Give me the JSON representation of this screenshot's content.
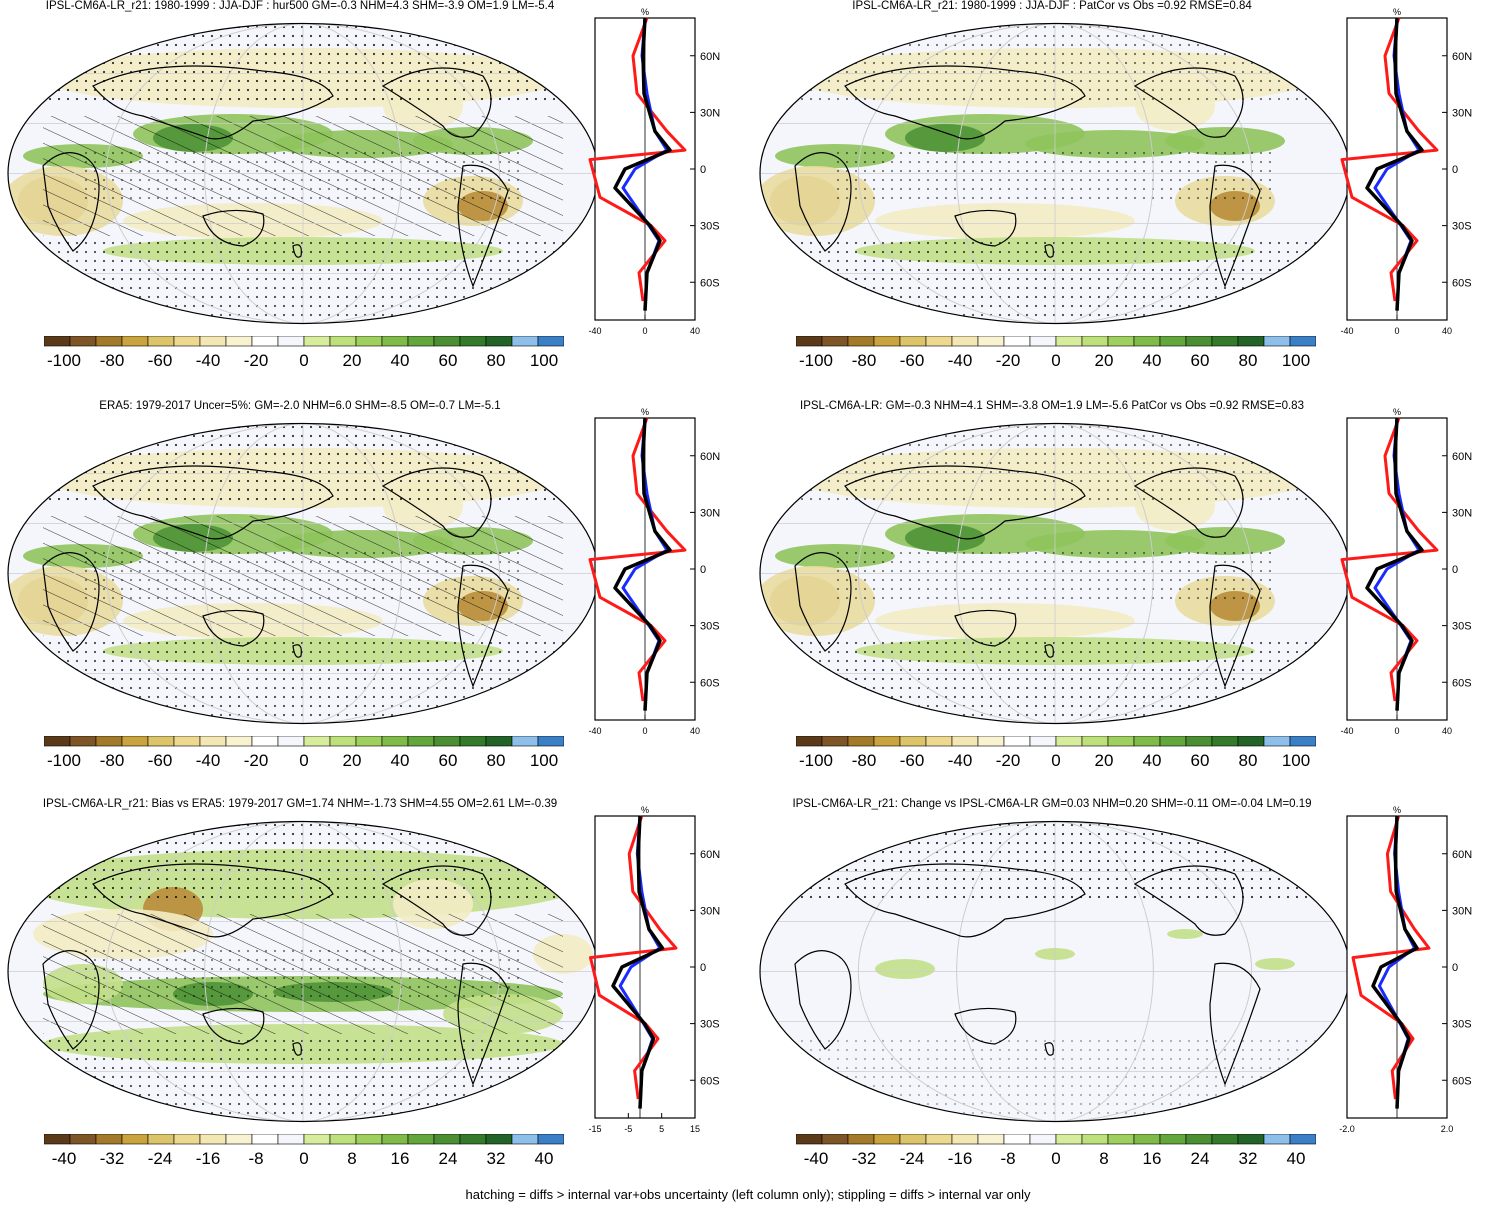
{
  "panels": [
    {
      "id": "p1",
      "title": "IPSL-CM6A-LR_r21: 1980-1999 : JJA-DJF : hur500 GM=-0.3 NHM=4.3 SHM=-3.9 OM=1.9 LM=-5.4",
      "profile_unit": "%",
      "lat_ticks": [
        "60N",
        "30N",
        "0",
        "30S",
        "60S"
      ],
      "x_ticks": [
        "-40",
        "0",
        "40"
      ],
      "colorbar_ticks": [
        "-100",
        "-80",
        "-60",
        "-40",
        "-20",
        "0",
        "20",
        "40",
        "60",
        "80",
        "100"
      ],
      "hatching": true
    },
    {
      "id": "p2",
      "title": "IPSL-CM6A-LR_r21: 1980-1999 : JJA-DJF : PatCor vs Obs =0.92 RMSE=0.84",
      "profile_unit": "%",
      "lat_ticks": [
        "60N",
        "30N",
        "0",
        "30S",
        "60S"
      ],
      "x_ticks": [
        "-40",
        "0",
        "40"
      ],
      "colorbar_ticks": [
        "-100",
        "-80",
        "-60",
        "-40",
        "-20",
        "0",
        "20",
        "40",
        "60",
        "80",
        "100"
      ],
      "hatching": false
    },
    {
      "id": "p3",
      "title": "ERA5: 1979-2017 Uncer=5%: GM=-2.0 NHM=6.0 SHM=-8.5 OM=-0.7 LM=-5.1",
      "profile_unit": "%",
      "lat_ticks": [
        "60N",
        "30N",
        "0",
        "30S",
        "60S"
      ],
      "x_ticks": [
        "-40",
        "0",
        "40"
      ],
      "colorbar_ticks": [
        "-100",
        "-80",
        "-60",
        "-40",
        "-20",
        "0",
        "20",
        "40",
        "60",
        "80",
        "100"
      ],
      "hatching": true
    },
    {
      "id": "p4",
      "title": "IPSL-CM6A-LR: GM=-0.3 NHM=4.1 SHM=-3.8 OM=1.9 LM=-5.6 PatCor vs Obs =0.92 RMSE=0.83",
      "profile_unit": "%",
      "lat_ticks": [
        "60N",
        "30N",
        "0",
        "30S",
        "60S"
      ],
      "x_ticks": [
        "-40",
        "0",
        "40"
      ],
      "colorbar_ticks": [
        "-100",
        "-80",
        "-60",
        "-40",
        "-20",
        "0",
        "20",
        "40",
        "60",
        "80",
        "100"
      ],
      "hatching": false
    },
    {
      "id": "p5",
      "title": "IPSL-CM6A-LR_r21: Bias vs ERA5: 1979-2017 GM=1.74 NHM=-1.73 SHM=4.55 OM=2.61 LM=-0.39",
      "profile_unit": "%",
      "lat_ticks": [
        "60N",
        "30N",
        "0",
        "30S",
        "60S"
      ],
      "x_ticks": [
        "-15",
        "-5",
        "5",
        "15"
      ],
      "colorbar_ticks": [
        "-40",
        "-32",
        "-24",
        "-16",
        "-8",
        "0",
        "8",
        "16",
        "24",
        "32",
        "40"
      ],
      "hatching": true
    },
    {
      "id": "p6",
      "title": "IPSL-CM6A-LR_r21: Change vs IPSL-CM6A-LR GM=0.03 NHM=0.20 SHM=-0.11 OM=-0.04 LM=0.19",
      "profile_unit": "%",
      "lat_ticks": [
        "60N",
        "30N",
        "0",
        "30S",
        "60S"
      ],
      "x_ticks": [
        "-2.0",
        "2.0"
      ],
      "colorbar_ticks": [
        "-40",
        "-32",
        "-24",
        "-16",
        "-8",
        "0",
        "8",
        "16",
        "24",
        "32",
        "40"
      ],
      "hatching": false
    }
  ],
  "colorbar_colors": [
    "#5b3a1a",
    "#7e5526",
    "#a37a2c",
    "#c8a33e",
    "#dcc46a",
    "#ecd98f",
    "#f3e8b3",
    "#f8f2d3",
    "#ffffff",
    "#f4f6fb",
    "#d8ec9e",
    "#bde07c",
    "#9fcf5e",
    "#80bb49",
    "#63a63d",
    "#4b8f32",
    "#357a2a",
    "#226327",
    "#8cc0ea",
    "#3b7fc7"
  ],
  "colors": {
    "red": "#ff1a1a",
    "blue": "#1a2bff",
    "black": "#000000"
  },
  "footnote": "hatching = diffs > internal var+obs uncertainty (left column only); stippling = diffs > internal var only"
}
